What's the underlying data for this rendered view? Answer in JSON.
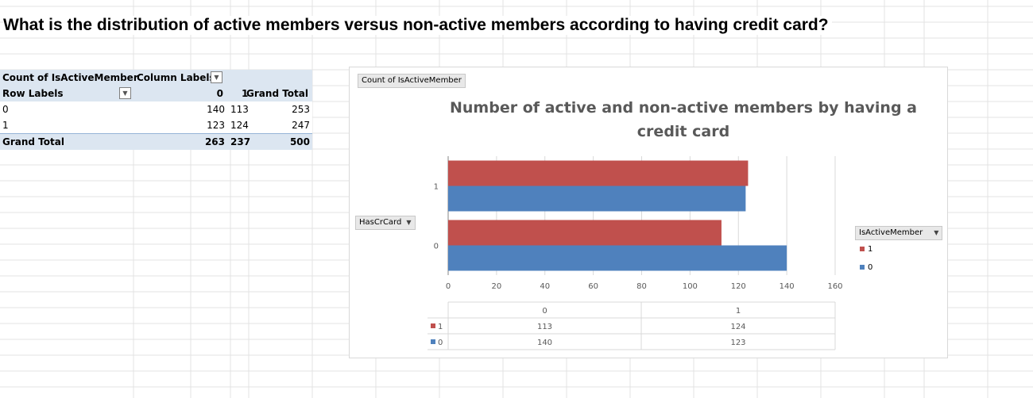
{
  "worksheet": {
    "question": "What is the distribution of active members versus non-active members according to having credit card?"
  },
  "pivot_table": {
    "value_field": "Count of IsActiveMember",
    "column_labels": "Column Labels",
    "row_labels": "Row Labels",
    "column_headers": [
      "0",
      "1",
      "Grand Total"
    ],
    "rows": [
      {
        "label": "0",
        "values": [
          "140",
          "113",
          "253"
        ]
      },
      {
        "label": "1",
        "values": [
          "123",
          "124",
          "247"
        ]
      }
    ],
    "grand_total": {
      "label": "Grand Total",
      "values": [
        "263",
        "237",
        "500"
      ]
    }
  },
  "chart": {
    "value_field_button": "Count of IsActiveMember",
    "axis_field_button": "HasCrCard",
    "legend_field_button": "IsActiveMember",
    "title_line1": "Number of active and non-active members by having a",
    "title_line2": "credit card",
    "colors": {
      "series_1": "#c0504d",
      "series_0": "#4f81bd"
    }
  },
  "chart_data": {
    "type": "bar",
    "orientation": "horizontal",
    "categories": [
      "0",
      "1"
    ],
    "series": [
      {
        "name": "1",
        "values": [
          113,
          124
        ]
      },
      {
        "name": "0",
        "values": [
          140,
          123
        ]
      }
    ],
    "xlim": [
      0,
      160
    ],
    "x_ticks": [
      "0",
      "20",
      "40",
      "60",
      "80",
      "100",
      "120",
      "140",
      "160"
    ],
    "grid": true,
    "legend": "right",
    "data_table": {
      "header": [
        "0",
        "1"
      ],
      "rows": [
        {
          "name": "1",
          "values": [
            "113",
            "124"
          ]
        },
        {
          "name": "0",
          "values": [
            "140",
            "123"
          ]
        }
      ]
    }
  }
}
